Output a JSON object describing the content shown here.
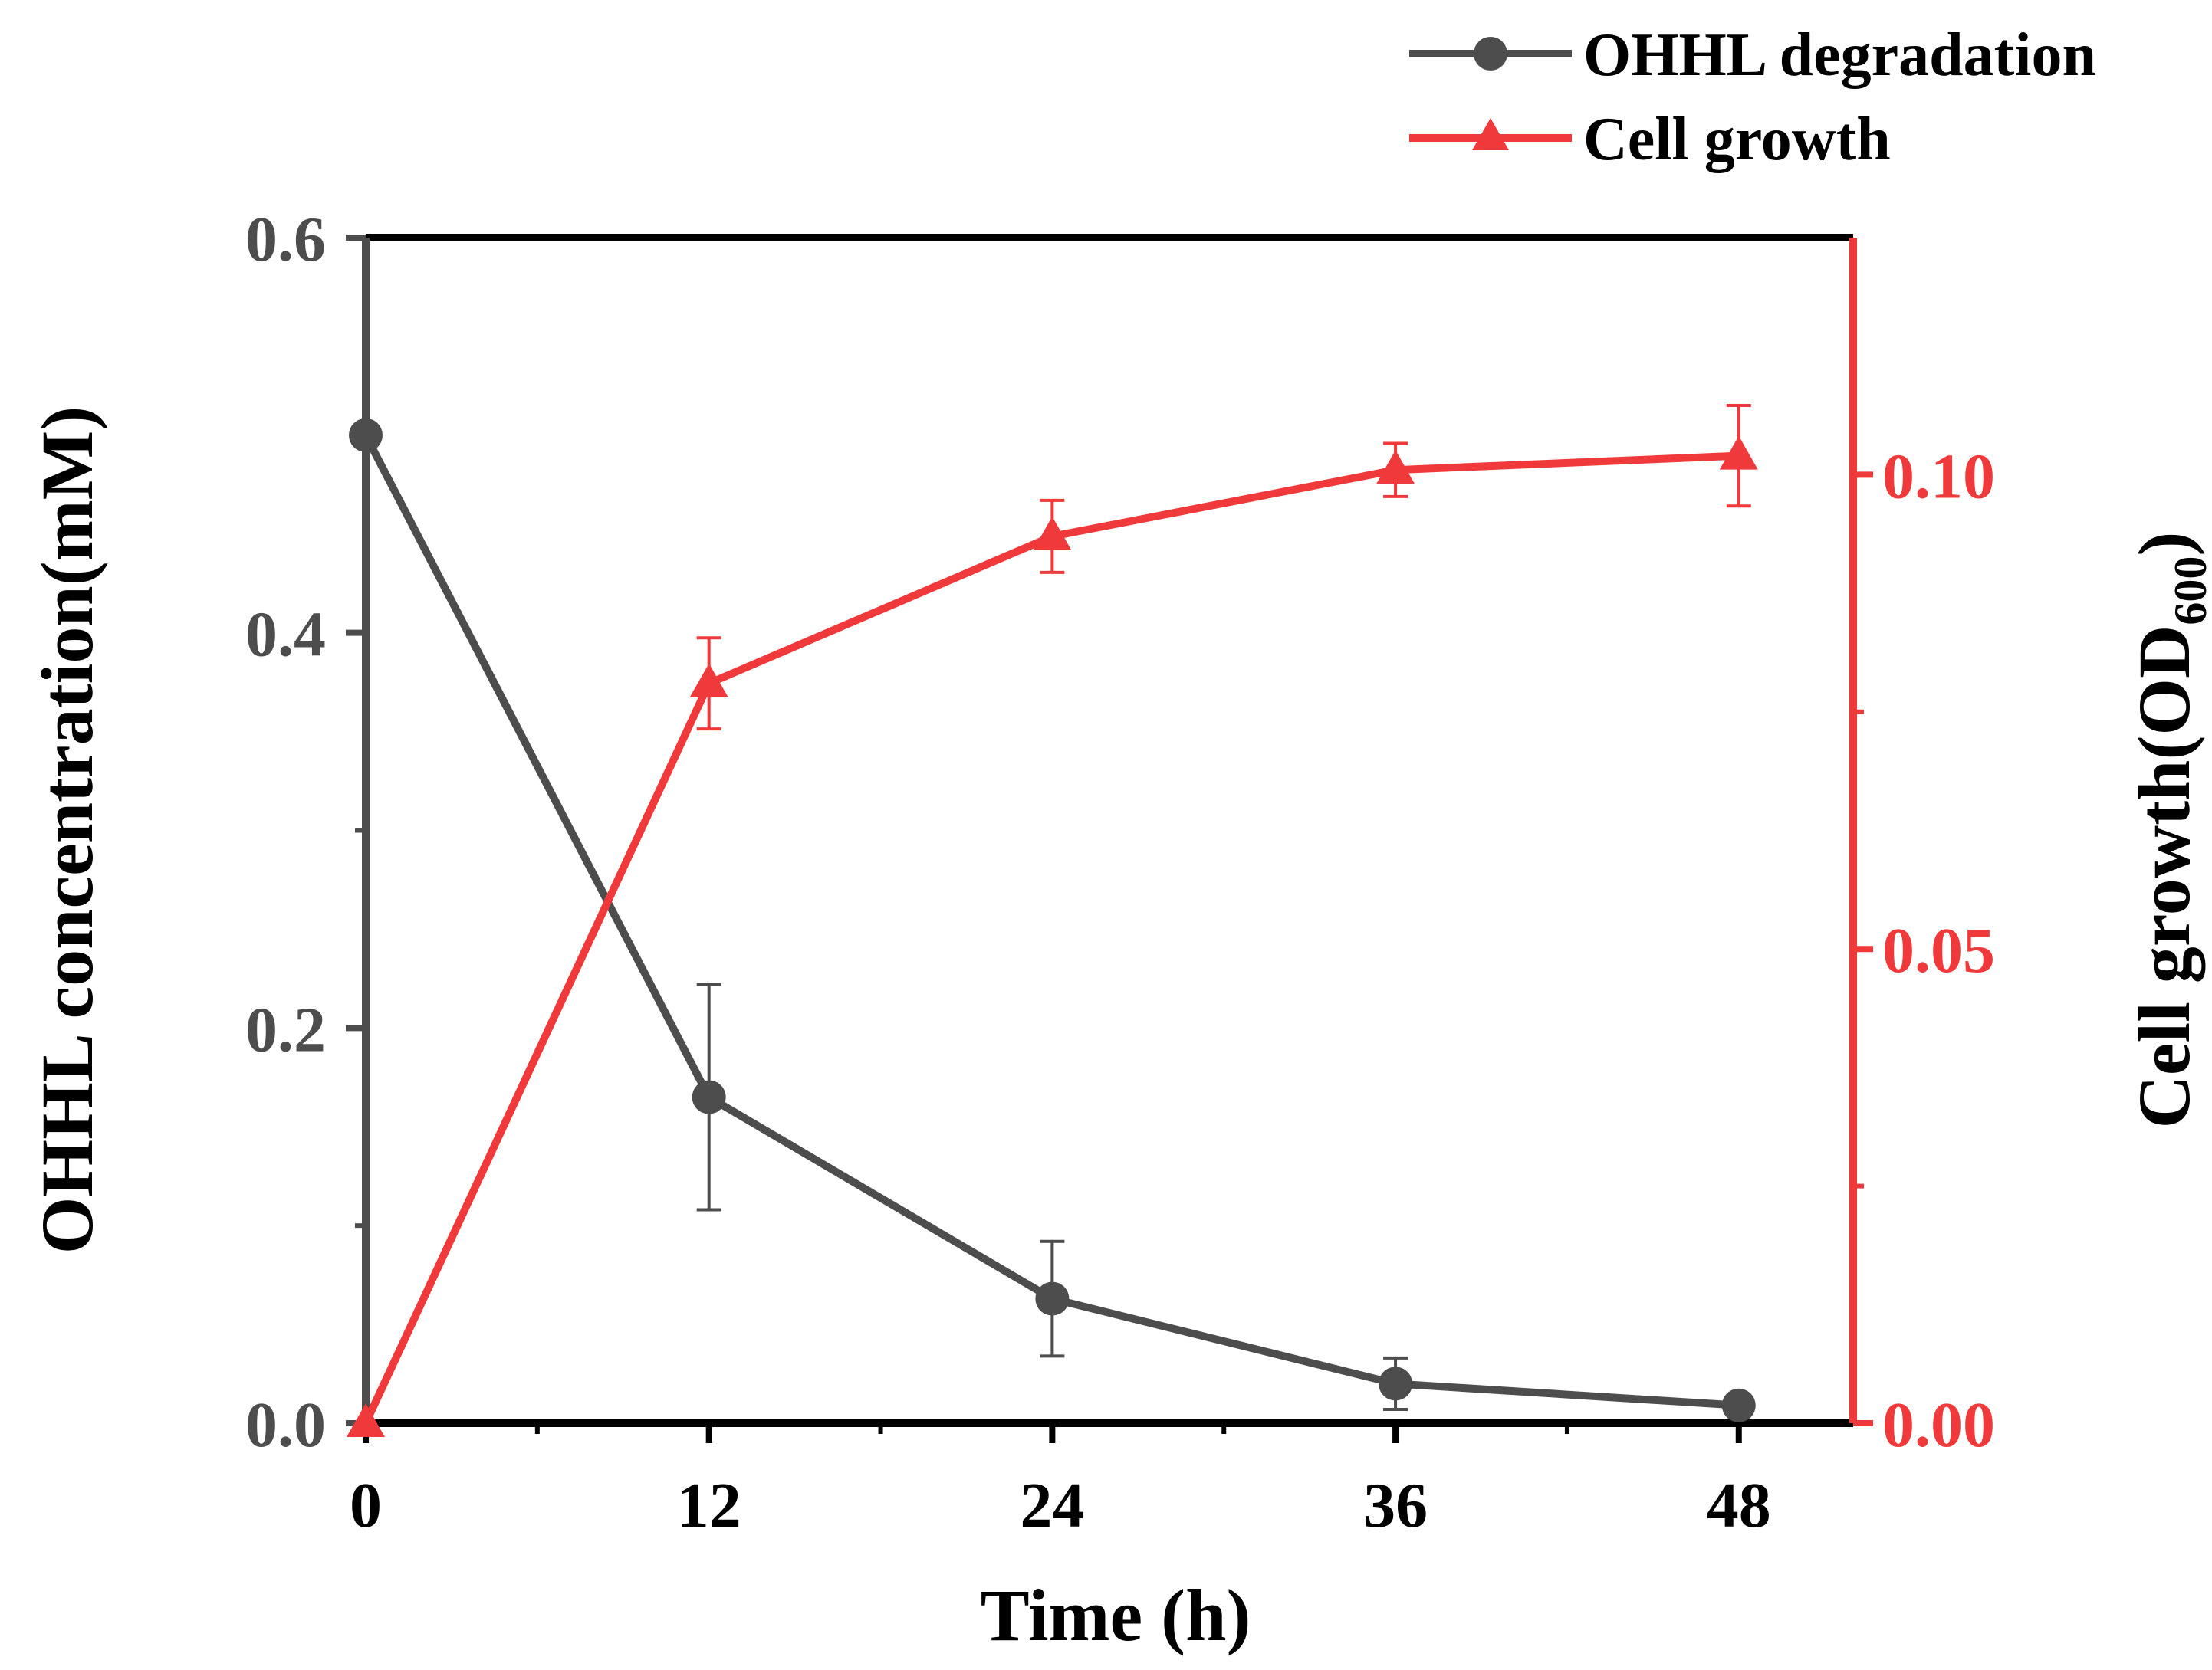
{
  "chart_data": {
    "type": "line",
    "x": [
      0,
      12,
      24,
      36,
      48
    ],
    "xlabel": "Time (h)",
    "xlim": [
      0,
      52
    ],
    "xticks": [
      0,
      12,
      24,
      36,
      48
    ],
    "xtick_labels": [
      "0",
      "12",
      "24",
      "36",
      "48"
    ],
    "left_axis": {
      "label": "OHHL concentration(mM)",
      "ylim": [
        0,
        0.6
      ],
      "ticks": [
        0,
        0.2,
        0.4,
        0.6
      ],
      "tick_labels": [
        "0.0",
        "0.2",
        "0.4",
        "0.6"
      ],
      "color": "#4d4d4d"
    },
    "right_axis": {
      "label_main": "Cell growth(OD",
      "label_sub": "600",
      "label_end": ")",
      "ylim": [
        0,
        0.125
      ],
      "ticks": [
        0,
        0.05,
        0.1
      ],
      "tick_labels": [
        "0.00",
        "0.05",
        "0.10"
      ],
      "color": "#f0393a"
    },
    "series": [
      {
        "name": "OHHL degradation",
        "axis": "left",
        "marker": "circle",
        "color": "#4d4d4d",
        "values": [
          0.5,
          0.165,
          0.063,
          0.02,
          0.009
        ],
        "errors": [
          0,
          0.057,
          0.029,
          0.013,
          0.003
        ]
      },
      {
        "name": "Cell growth",
        "axis": "right",
        "marker": "triangle",
        "color": "#f0393a",
        "values": [
          0,
          0.078,
          0.0935,
          0.1005,
          0.102
        ],
        "errors": [
          0,
          0.0048,
          0.0038,
          0.0028,
          0.0053
        ]
      }
    ],
    "legend": {
      "position": "top-right",
      "entries": [
        "OHHL degradation",
        "Cell growth"
      ]
    }
  }
}
